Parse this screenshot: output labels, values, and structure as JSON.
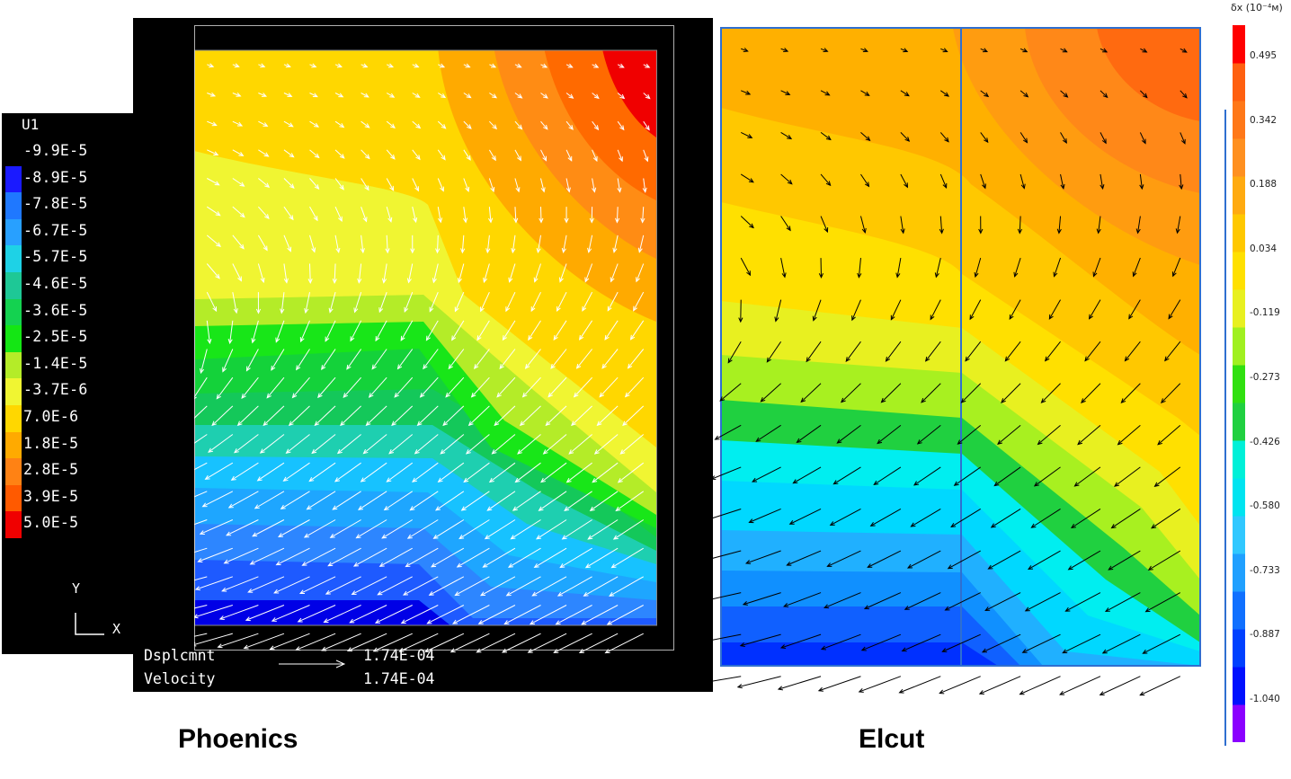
{
  "phoenics": {
    "caption": "Phoenics",
    "legend_title": "U1",
    "legend": [
      {
        "label": "-9.9E-5",
        "color": "#000000"
      },
      {
        "label": "-8.9E-5",
        "color": "#1a1aff"
      },
      {
        "label": "-7.8E-5",
        "color": "#1f78ff"
      },
      {
        "label": "-6.7E-5",
        "color": "#28a0ff"
      },
      {
        "label": "-5.7E-5",
        "color": "#1ed2e6"
      },
      {
        "label": "-4.6E-5",
        "color": "#1ec896"
      },
      {
        "label": "-3.6E-5",
        "color": "#14d250"
      },
      {
        "label": "-2.5E-5",
        "color": "#14e614"
      },
      {
        "label": "-1.4E-5",
        "color": "#b4ec28"
      },
      {
        "label": "-3.7E-6",
        "color": "#f0f532"
      },
      {
        "label": "7.0E-6",
        "color": "#ffd700"
      },
      {
        "label": "1.8E-5",
        "color": "#ffaa00"
      },
      {
        "label": "2.8E-5",
        "color": "#ff8214"
      },
      {
        "label": "3.9E-5",
        "color": "#ff5a00"
      },
      {
        "label": "5.0E-5",
        "color": "#f00000"
      }
    ],
    "axis_y": "Y",
    "axis_x": "X",
    "footer": {
      "disp_label": "Dsplcmnt",
      "disp_value": "1.74E-04",
      "vel_label": "Velocity",
      "vel_value": "1.74E-04"
    }
  },
  "elcut": {
    "caption": "Elcut",
    "colorbar_title": "δx (10⁻⁴м)",
    "ticks": [
      "0.495",
      "0.342",
      "0.188",
      "0.034",
      "-0.119",
      "-0.273",
      "-0.426",
      "-0.580",
      "-0.733",
      "-0.887",
      "-1.040"
    ],
    "colorbar_colors": [
      "#8a00ff",
      "#0010ff",
      "#0040ff",
      "#1070ff",
      "#20a0ff",
      "#30c8ff",
      "#00e4f0",
      "#00f0d8",
      "#20d040",
      "#30e010",
      "#a0f020",
      "#e8f020",
      "#ffe000",
      "#ffc800",
      "#ffaa10",
      "#ff9020",
      "#ff7818",
      "#ff6010",
      "#ff0000"
    ],
    "accent_color": "#2f6fd0"
  }
}
